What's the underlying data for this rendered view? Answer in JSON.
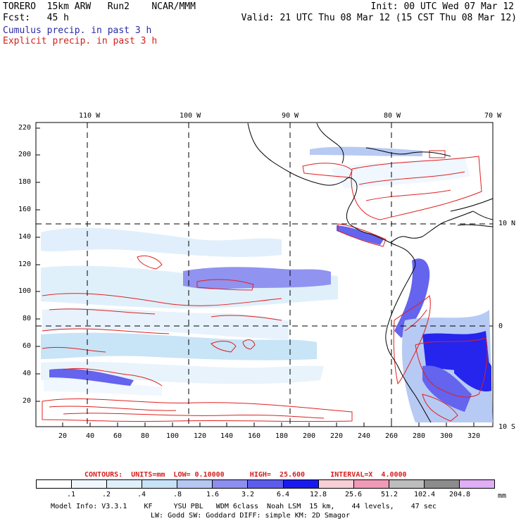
{
  "header": {
    "line1_left": "TORERO  15km ARW   Run2    NCAR/MMM",
    "line1_right": "Init: 00 UTC Wed 07 Mar 12",
    "line2_left": "Fcst:   45 h",
    "line2_right": "Valid: 21 UTC Thu 08 Mar 12 (15 CST Thu 08 Mar 12)",
    "cumulus_label": "Cumulus precip. in past 3 h",
    "explicit_label": "Explicit precip. in past 3 h"
  },
  "colors": {
    "cumulus_text": "#2a2aa8",
    "explicit_text": "#d42020",
    "contour": "#e02020",
    "grid": "#000000"
  },
  "map": {
    "lon_labels": [
      "110 W",
      "100 W",
      "90 W",
      "80 W",
      "70 W"
    ],
    "lat_labels": [
      "10 N",
      "0",
      "10 S"
    ],
    "y_ticks": [
      "220",
      "200",
      "180",
      "160",
      "140",
      "120",
      "100",
      "80",
      "60",
      "40",
      "20"
    ],
    "x_ticks": [
      "20",
      "40",
      "60",
      "80",
      "100",
      "120",
      "140",
      "160",
      "180",
      "200",
      "220",
      "240",
      "260",
      "280",
      "300",
      "320"
    ]
  },
  "legend": {
    "contours_line": "CONTOURS:  UNITS=mm  LOW= 0.10000      HIGH=  25.600      INTERVAL=X  4.0000",
    "colorbar_values": [
      ".1",
      ".2",
      ".4",
      ".8",
      "1.6",
      "3.2",
      "6.4",
      "12.8",
      "25.6",
      "51.2",
      "102.4",
      "204.8"
    ],
    "colorbar_colors": [
      "#ffffff",
      "#f0f7ff",
      "#dff0fb",
      "#c6e3f7",
      "#b4c8f3",
      "#8c8ef0",
      "#5c5cee",
      "#1a1aee",
      "#f8cfd6",
      "#f09ab8",
      "#bdbdbd",
      "#8c8c8c",
      "#e0aef4"
    ],
    "units": "mm"
  },
  "footer": {
    "line1": "Model Info: V3.3.1    KF     YSU PBL   WDM 6class  Noah LSM  15 km,    44 levels,    47 sec",
    "line2": "LW: Godd SW: Goddard DIFF: simple KM: 2D Smagor"
  }
}
